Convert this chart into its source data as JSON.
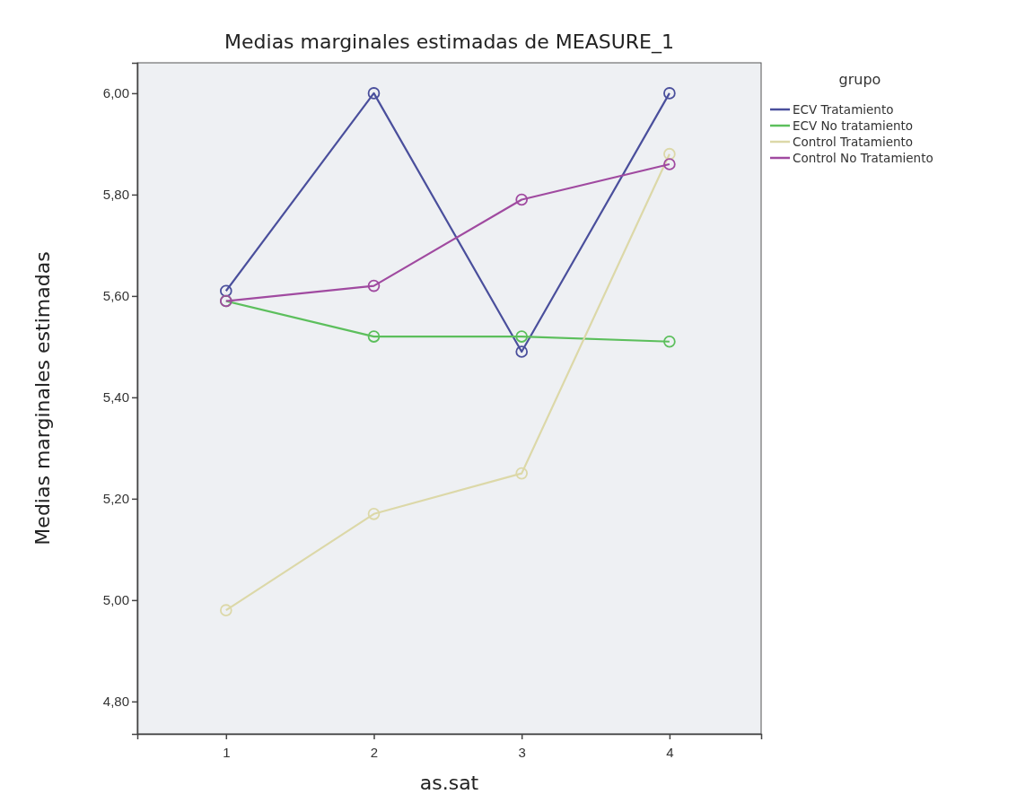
{
  "chart_data": {
    "type": "line",
    "title": "Medias marginales estimadas de MEASURE_1",
    "xlabel": "as.sat",
    "ylabel": "Medias marginales estimadas",
    "legend_title": "grupo",
    "legend": "top right",
    "marker": "circle",
    "grid": false,
    "x": [
      1,
      2,
      3,
      4
    ],
    "xlim": [
      0.4,
      4.62
    ],
    "xticks": [
      1,
      2,
      3,
      4
    ],
    "ylim": [
      4.736,
      6.06
    ],
    "yticks": [
      {
        "value": 4.8,
        "label": "4,80"
      },
      {
        "value": 5.0,
        "label": "5,00"
      },
      {
        "value": 5.2,
        "label": "5,20"
      },
      {
        "value": 5.4,
        "label": "5,40"
      },
      {
        "value": 5.6,
        "label": "5,60"
      },
      {
        "value": 5.8,
        "label": "5,80"
      },
      {
        "value": 6.0,
        "label": "6,00"
      }
    ],
    "series": [
      {
        "name": "ECV Tratamiento",
        "color": "#4a4f9c",
        "values": [
          5.61,
          6.0,
          5.49,
          6.0
        ]
      },
      {
        "name": "ECV No tratamiento",
        "color": "#5cbf5c",
        "values": [
          5.59,
          5.52,
          5.52,
          5.51
        ]
      },
      {
        "name": "Control Tratamiento",
        "color": "#dcd8a8",
        "values": [
          4.98,
          5.17,
          5.25,
          5.88
        ]
      },
      {
        "name": "Control No Tratamiento",
        "color": "#a04aa0",
        "values": [
          5.59,
          5.62,
          5.79,
          5.86
        ]
      }
    ]
  }
}
